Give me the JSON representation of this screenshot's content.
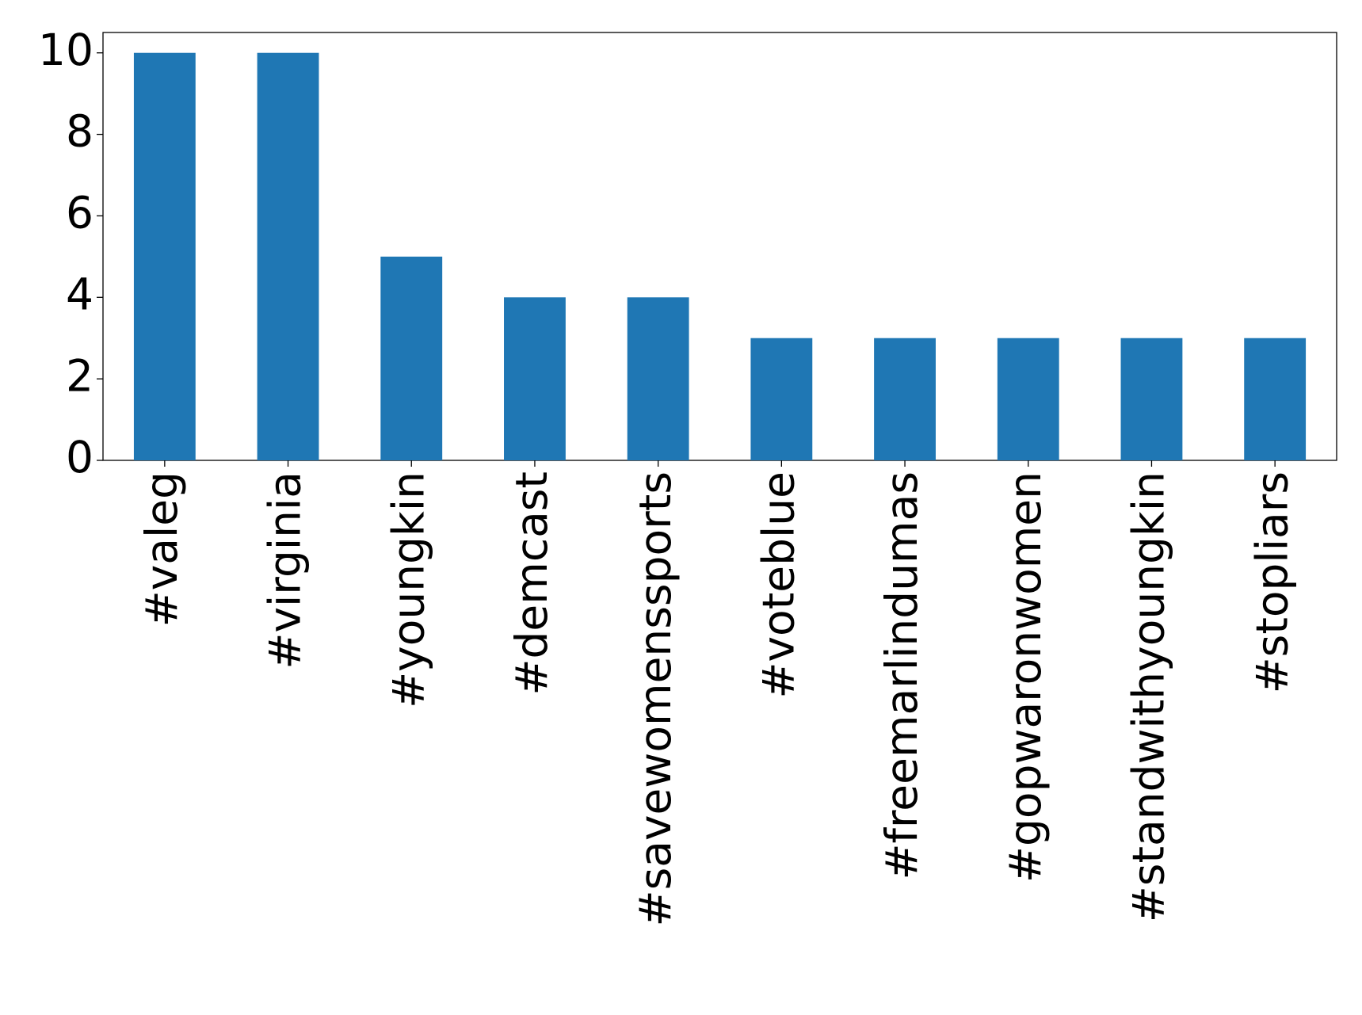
{
  "chart_data": {
    "type": "bar",
    "categories": [
      "#valeg",
      "#virginia",
      "#youngkin",
      "#demcast",
      "#savewomenssports",
      "#voteblue",
      "#freemarlindumas",
      "#gopwaronwomen",
      "#standwithyoungkin",
      "#stopliars"
    ],
    "values": [
      10,
      10,
      5,
      4,
      4,
      3,
      3,
      3,
      3,
      3
    ],
    "color": "#1f77b4",
    "ylim": [
      0,
      10.5
    ],
    "yticks": [
      0,
      2,
      4,
      6,
      8,
      10
    ],
    "grid": false
  }
}
